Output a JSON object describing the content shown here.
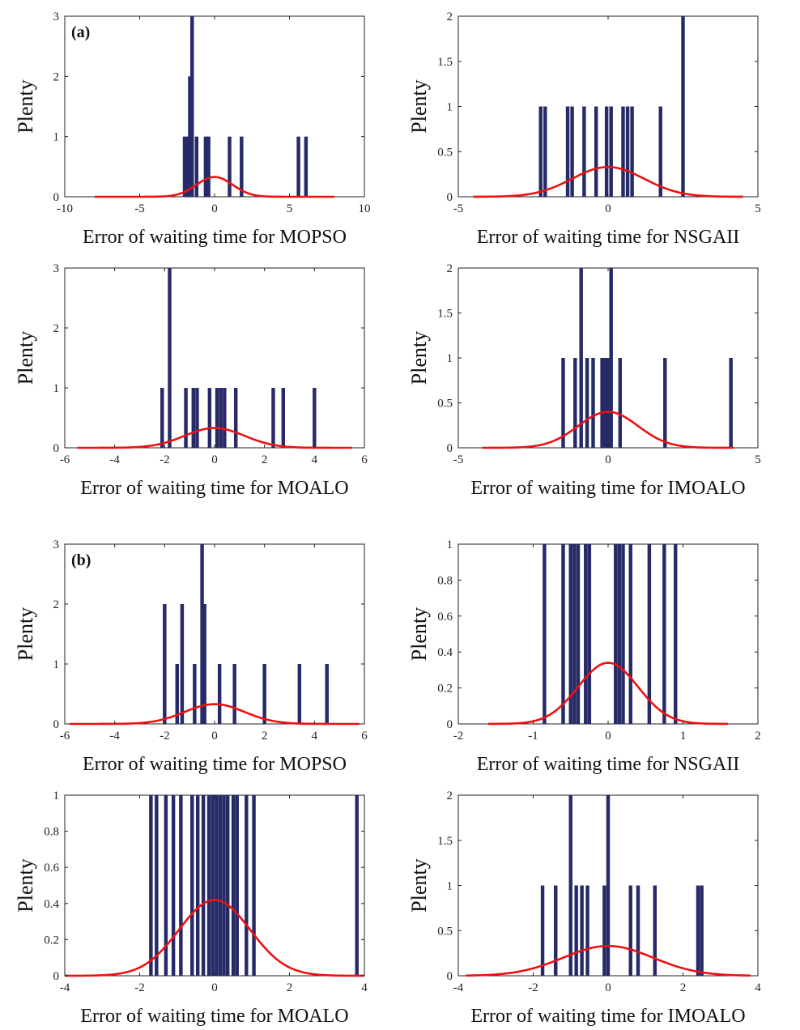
{
  "chart_data": [
    {
      "type": "bar",
      "tag": "(a)",
      "xlabel": "Error of waiting time for MOPSO",
      "ylabel": "Plenty",
      "xlim": [
        -10,
        10
      ],
      "ylim": [
        0,
        3
      ],
      "xticks": [
        -10,
        -5,
        0,
        5,
        10
      ],
      "yticks": [
        0,
        1,
        2,
        3
      ],
      "xtick_labels": [
        "-10",
        "-5",
        "0",
        "5",
        "10"
      ],
      "ytick_labels": [
        "0",
        "1",
        "2",
        "3"
      ],
      "bars": [
        {
          "x": -2.0,
          "y": 1
        },
        {
          "x": -1.8,
          "y": 1
        },
        {
          "x": -1.65,
          "y": 2
        },
        {
          "x": -1.5,
          "y": 3
        },
        {
          "x": -1.2,
          "y": 1
        },
        {
          "x": -0.6,
          "y": 1
        },
        {
          "x": -0.4,
          "y": 1
        },
        {
          "x": 1.0,
          "y": 1
        },
        {
          "x": 1.8,
          "y": 1
        },
        {
          "x": 5.6,
          "y": 1
        },
        {
          "x": 6.1,
          "y": 1
        }
      ],
      "curve": {
        "sigma": 1.2,
        "peak": 0.33,
        "range": [
          -8,
          8
        ]
      },
      "bar_color": "#262a66",
      "curve_color": "#ee1111"
    },
    {
      "type": "bar",
      "xlabel": "Error of waiting time for NSGAII",
      "ylabel": "Plenty",
      "xlim": [
        -5,
        5
      ],
      "ylim": [
        0,
        2
      ],
      "xticks": [
        -5,
        0,
        5
      ],
      "yticks": [
        0,
        0.5,
        1,
        1.5,
        2
      ],
      "xtick_labels": [
        "-5",
        "0",
        "5"
      ],
      "ytick_labels": [
        "0",
        "0.5",
        "1",
        "1.5",
        "2"
      ],
      "bars": [
        {
          "x": -2.25,
          "y": 1
        },
        {
          "x": -2.1,
          "y": 1
        },
        {
          "x": -1.35,
          "y": 1
        },
        {
          "x": -1.2,
          "y": 1
        },
        {
          "x": -0.8,
          "y": 1
        },
        {
          "x": -0.4,
          "y": 1
        },
        {
          "x": -0.05,
          "y": 1
        },
        {
          "x": 0.1,
          "y": 1
        },
        {
          "x": 0.5,
          "y": 1
        },
        {
          "x": 0.65,
          "y": 1
        },
        {
          "x": 0.8,
          "y": 1
        },
        {
          "x": 1.75,
          "y": 1
        },
        {
          "x": 2.5,
          "y": 2
        }
      ],
      "curve": {
        "sigma": 1.2,
        "peak": 0.33,
        "range": [
          -4.5,
          4.5
        ]
      },
      "bar_color": "#262a66",
      "curve_color": "#ee1111"
    },
    {
      "type": "bar",
      "xlabel": "Error of waiting time for MOALO",
      "ylabel": "Plenty",
      "xlim": [
        -6,
        6
      ],
      "ylim": [
        0,
        3
      ],
      "xticks": [
        -6,
        -4,
        -2,
        0,
        2,
        4,
        6
      ],
      "yticks": [
        0,
        1,
        2,
        3
      ],
      "xtick_labels": [
        "-6",
        "-4",
        "-2",
        "0",
        "2",
        "4",
        "6"
      ],
      "ytick_labels": [
        "0",
        "1",
        "2",
        "3"
      ],
      "bars": [
        {
          "x": -2.1,
          "y": 1
        },
        {
          "x": -1.8,
          "y": 3
        },
        {
          "x": -1.15,
          "y": 1
        },
        {
          "x": -0.85,
          "y": 1
        },
        {
          "x": -0.7,
          "y": 1
        },
        {
          "x": -0.2,
          "y": 1
        },
        {
          "x": 0.1,
          "y": 1
        },
        {
          "x": 0.25,
          "y": 1
        },
        {
          "x": 0.4,
          "y": 1
        },
        {
          "x": 0.85,
          "y": 1
        },
        {
          "x": 2.35,
          "y": 1
        },
        {
          "x": 2.75,
          "y": 1
        },
        {
          "x": 4.0,
          "y": 1
        }
      ],
      "curve": {
        "sigma": 1.2,
        "peak": 0.33,
        "range": [
          -5.5,
          5.5
        ]
      },
      "bar_color": "#262a66",
      "curve_color": "#ee1111"
    },
    {
      "type": "bar",
      "xlabel": "Error of waiting time for IMOALO",
      "ylabel": "Plenty",
      "xlim": [
        -5,
        5
      ],
      "ylim": [
        0,
        2
      ],
      "xticks": [
        -5,
        0,
        5
      ],
      "yticks": [
        0,
        0.5,
        1,
        1.5,
        2
      ],
      "xtick_labels": [
        "-5",
        "0",
        "5"
      ],
      "ytick_labels": [
        "0",
        "0.5",
        "1",
        "1.5",
        "2"
      ],
      "bars": [
        {
          "x": -1.5,
          "y": 1
        },
        {
          "x": -1.1,
          "y": 1
        },
        {
          "x": -0.9,
          "y": 2
        },
        {
          "x": -0.7,
          "y": 1
        },
        {
          "x": -0.5,
          "y": 1
        },
        {
          "x": -0.2,
          "y": 1
        },
        {
          "x": -0.1,
          "y": 1
        },
        {
          "x": 0.0,
          "y": 1
        },
        {
          "x": 0.1,
          "y": 2
        },
        {
          "x": 0.4,
          "y": 1
        },
        {
          "x": 1.9,
          "y": 1
        },
        {
          "x": 4.1,
          "y": 1
        }
      ],
      "curve": {
        "sigma": 1.0,
        "peak": 0.4,
        "range": [
          -4.2,
          4.2
        ]
      },
      "bar_color": "#262a66",
      "curve_color": "#ee1111"
    },
    {
      "type": "bar",
      "tag": "(b)",
      "xlabel": "Error of waiting time for MOPSO",
      "ylabel": "Plenty",
      "xlim": [
        -6,
        6
      ],
      "ylim": [
        0,
        3
      ],
      "xticks": [
        -6,
        -4,
        -2,
        0,
        2,
        4,
        6
      ],
      "yticks": [
        0,
        1,
        2,
        3
      ],
      "xtick_labels": [
        "-6",
        "-4",
        "-2",
        "0",
        "2",
        "4",
        "6"
      ],
      "ytick_labels": [
        "0",
        "1",
        "2",
        "3"
      ],
      "bars": [
        {
          "x": -2.0,
          "y": 2
        },
        {
          "x": -1.5,
          "y": 1
        },
        {
          "x": -1.3,
          "y": 2
        },
        {
          "x": -0.8,
          "y": 1
        },
        {
          "x": -0.5,
          "y": 3
        },
        {
          "x": -0.4,
          "y": 2
        },
        {
          "x": 0.2,
          "y": 1
        },
        {
          "x": 0.8,
          "y": 1
        },
        {
          "x": 2.0,
          "y": 1
        },
        {
          "x": 3.4,
          "y": 1
        },
        {
          "x": 4.5,
          "y": 1
        }
      ],
      "curve": {
        "sigma": 1.2,
        "peak": 0.33,
        "range": [
          -5.8,
          5.8
        ]
      },
      "bar_color": "#262a66",
      "curve_color": "#ee1111"
    },
    {
      "type": "bar",
      "xlabel": "Error of waiting time for NSGAII",
      "ylabel": "Plenty",
      "xlim": [
        -2,
        2
      ],
      "ylim": [
        0,
        1
      ],
      "xticks": [
        -2,
        -1,
        0,
        1,
        2
      ],
      "yticks": [
        0,
        0.2,
        0.4,
        0.6,
        0.8,
        1
      ],
      "xtick_labels": [
        "-2",
        "-1",
        "0",
        "1",
        "2"
      ],
      "ytick_labels": [
        "0",
        "0.2",
        "0.4",
        "0.6",
        "0.8",
        "1"
      ],
      "bars": [
        {
          "x": -0.85,
          "y": 1
        },
        {
          "x": -0.6,
          "y": 1
        },
        {
          "x": -0.5,
          "y": 1
        },
        {
          "x": -0.45,
          "y": 1
        },
        {
          "x": -0.4,
          "y": 1
        },
        {
          "x": -0.3,
          "y": 1
        },
        {
          "x": -0.25,
          "y": 1
        },
        {
          "x": 0.1,
          "y": 1
        },
        {
          "x": 0.15,
          "y": 1
        },
        {
          "x": 0.2,
          "y": 1
        },
        {
          "x": 0.3,
          "y": 1
        },
        {
          "x": 0.55,
          "y": 1
        },
        {
          "x": 0.75,
          "y": 1
        },
        {
          "x": 0.9,
          "y": 1
        }
      ],
      "curve": {
        "sigma": 0.4,
        "peak": 0.34,
        "range": [
          -1.6,
          1.6
        ]
      },
      "bar_color": "#262a66",
      "curve_color": "#ee1111"
    },
    {
      "type": "bar",
      "xlabel": "Error of waiting time for MOALO",
      "ylabel": "Plenty",
      "xlim": [
        -4,
        4
      ],
      "ylim": [
        0,
        1
      ],
      "xticks": [
        -4,
        -2,
        0,
        2,
        4
      ],
      "yticks": [
        0,
        0.2,
        0.4,
        0.6,
        0.8,
        1
      ],
      "xtick_labels": [
        "-4",
        "-2",
        "0",
        "2",
        "4"
      ],
      "ytick_labels": [
        "0",
        "0.2",
        "0.4",
        "0.6",
        "0.8",
        "1"
      ],
      "bars": [
        {
          "x": -1.7,
          "y": 1
        },
        {
          "x": -1.55,
          "y": 1
        },
        {
          "x": -1.3,
          "y": 1
        },
        {
          "x": -1.1,
          "y": 1
        },
        {
          "x": -0.9,
          "y": 1
        },
        {
          "x": -0.6,
          "y": 1
        },
        {
          "x": -0.45,
          "y": 1
        },
        {
          "x": -0.3,
          "y": 1
        },
        {
          "x": -0.15,
          "y": 1
        },
        {
          "x": -0.05,
          "y": 1
        },
        {
          "x": 0.05,
          "y": 1
        },
        {
          "x": 0.15,
          "y": 1
        },
        {
          "x": 0.25,
          "y": 1
        },
        {
          "x": 0.35,
          "y": 1
        },
        {
          "x": 0.5,
          "y": 1
        },
        {
          "x": 0.6,
          "y": 1
        },
        {
          "x": 0.85,
          "y": 1
        },
        {
          "x": 1.05,
          "y": 1
        },
        {
          "x": 3.8,
          "y": 1
        }
      ],
      "curve": {
        "sigma": 0.95,
        "peak": 0.42,
        "range": [
          -4,
          4
        ]
      },
      "bar_color": "#262a66",
      "curve_color": "#ee1111"
    },
    {
      "type": "bar",
      "xlabel": "Error of waiting time for IMOALO",
      "ylabel": "Plenty",
      "xlim": [
        -4,
        4
      ],
      "ylim": [
        0,
        2
      ],
      "xticks": [
        -4,
        -2,
        0,
        2,
        4
      ],
      "yticks": [
        0,
        0.5,
        1,
        1.5,
        2
      ],
      "xtick_labels": [
        "-4",
        "-2",
        "0",
        "2",
        "4"
      ],
      "ytick_labels": [
        "0",
        "0.5",
        "1",
        "1.5",
        "2"
      ],
      "bars": [
        {
          "x": -1.75,
          "y": 1
        },
        {
          "x": -1.4,
          "y": 1
        },
        {
          "x": -1.0,
          "y": 2
        },
        {
          "x": -0.85,
          "y": 1
        },
        {
          "x": -0.7,
          "y": 1
        },
        {
          "x": -0.55,
          "y": 1
        },
        {
          "x": -0.1,
          "y": 1
        },
        {
          "x": 0.0,
          "y": 2
        },
        {
          "x": 0.6,
          "y": 1
        },
        {
          "x": 0.8,
          "y": 1
        },
        {
          "x": 1.25,
          "y": 1
        },
        {
          "x": 2.4,
          "y": 1
        },
        {
          "x": 2.5,
          "y": 1
        }
      ],
      "curve": {
        "sigma": 1.2,
        "peak": 0.33,
        "range": [
          -3.8,
          3.8
        ]
      },
      "bar_color": "#262a66",
      "curve_color": "#ee1111"
    }
  ]
}
